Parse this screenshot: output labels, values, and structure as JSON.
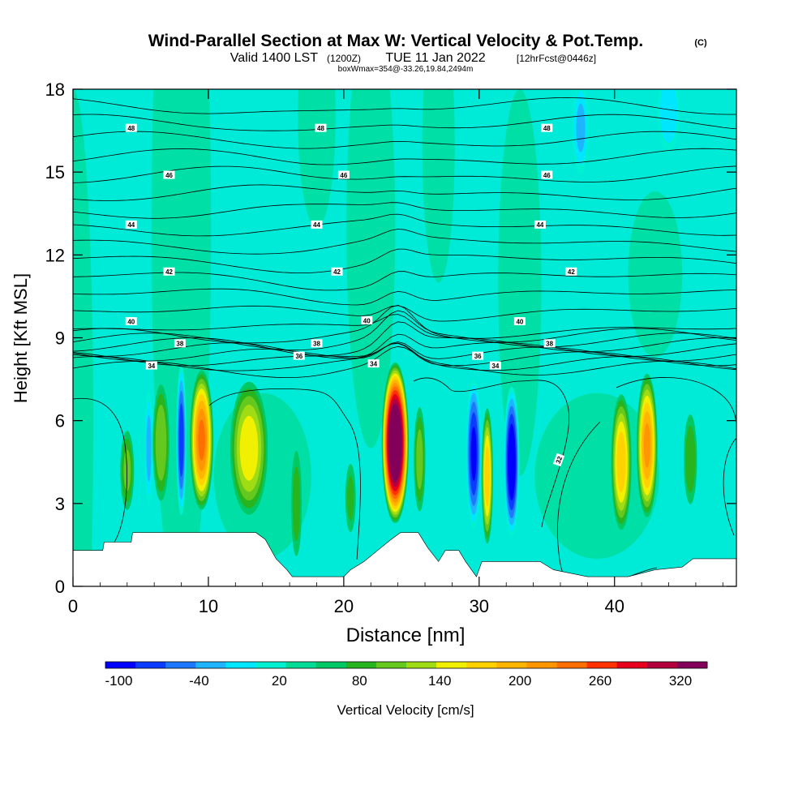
{
  "chart_data": {
    "type": "heatmap",
    "title": "Wind-Parallel Section at Max W: Vertical Velocity & Pot.Temp.",
    "title_mark": "(C)",
    "subtitle": {
      "valid_prefix": "Valid 1400 LST",
      "utc": "(1200Z)",
      "date": "TUE 11 Jan 2022",
      "forecast": "[12hrFcst@0446z]"
    },
    "box_info": "boxWmax=354@-33.26,19.84,2494m",
    "xlabel": "Distance [nm]",
    "ylabel": "Height [Kft MSL]",
    "xlim": [
      0,
      49
    ],
    "ylim": [
      0,
      18
    ],
    "x_ticks": [
      "0",
      "10",
      "20",
      "30",
      "40"
    ],
    "x_tick_values": [
      0,
      10,
      20,
      30,
      40
    ],
    "y_ticks": [
      "0",
      "3",
      "6",
      "9",
      "12",
      "15",
      "18"
    ],
    "y_tick_values": [
      0,
      3,
      6,
      9,
      12,
      15,
      18
    ],
    "colorbar": {
      "label": "Vertical Velocity [cm/s]",
      "range": [
        -110,
        340
      ],
      "step": 20,
      "tick_labels": [
        "-100",
        "-40",
        "20",
        "80",
        "140",
        "200",
        "260",
        "320"
      ],
      "tick_values": [
        -100,
        -40,
        20,
        80,
        140,
        200,
        260,
        320
      ],
      "colors": [
        "#0000ff",
        "#0a3cff",
        "#1e78ff",
        "#1eb4ff",
        "#00e6ff",
        "#00f0d2",
        "#00dc96",
        "#00c864",
        "#28b41e",
        "#64c81e",
        "#a0dc14",
        "#f0f000",
        "#ffd200",
        "#ffb400",
        "#ff9600",
        "#ff6e00",
        "#ff3200",
        "#e6001e",
        "#b4003c",
        "#82005a"
      ]
    },
    "terrain": {
      "distance_nm": [
        0,
        2.2,
        2.3,
        4.3,
        4.4,
        12,
        13.5,
        14.2,
        15,
        15.8,
        16.2,
        20,
        20.5,
        21.5,
        22.5,
        23.5,
        24.2,
        25.5,
        26.2,
        27,
        27.5,
        28.5,
        29,
        29.8,
        30.2,
        34.5,
        35.5,
        38,
        41,
        43,
        45,
        45.8,
        49
      ],
      "height_kft": [
        1.3,
        1.3,
        1.6,
        1.6,
        1.95,
        1.95,
        1.95,
        1.7,
        1.0,
        0.6,
        0.35,
        0.35,
        0.6,
        0.9,
        1.3,
        1.7,
        1.95,
        1.95,
        1.4,
        0.9,
        1.3,
        1.3,
        0.9,
        0.35,
        0.9,
        0.9,
        0.6,
        0.35,
        0.35,
        0.6,
        0.7,
        1.0,
        1.0
      ]
    },
    "updrafts": [
      {
        "x_nm": 4,
        "z_kft": 4.2,
        "half_width_nm": 0.6,
        "half_depth_kft": 1.7,
        "w_cms": 70
      },
      {
        "x_nm": 6.5,
        "z_kft": 5.2,
        "half_width_nm": 0.7,
        "half_depth_kft": 2.4,
        "w_cms": 85
      },
      {
        "x_nm": 9.5,
        "z_kft": 5.3,
        "half_width_nm": 0.9,
        "half_depth_kft": 2.6,
        "w_cms": 190
      },
      {
        "x_nm": 13,
        "z_kft": 5.0,
        "half_width_nm": 1.5,
        "half_depth_kft": 2.6,
        "w_cms": 120
      },
      {
        "x_nm": 16.5,
        "z_kft": 3.0,
        "half_width_nm": 0.5,
        "half_depth_kft": 2.4,
        "w_cms": 55
      },
      {
        "x_nm": 20.5,
        "z_kft": 3.2,
        "half_width_nm": 0.5,
        "half_depth_kft": 1.6,
        "w_cms": 50
      },
      {
        "x_nm": 23.8,
        "z_kft": 5.2,
        "half_width_nm": 1.0,
        "half_depth_kft": 2.9,
        "w_cms": 330
      },
      {
        "x_nm": 25.6,
        "z_kft": 4.6,
        "half_width_nm": 0.5,
        "half_depth_kft": 2.2,
        "w_cms": 75
      },
      {
        "x_nm": 30.6,
        "z_kft": 4.0,
        "half_width_nm": 0.45,
        "half_depth_kft": 2.6,
        "w_cms": 140
      },
      {
        "x_nm": 40.5,
        "z_kft": 4.5,
        "half_width_nm": 0.8,
        "half_depth_kft": 2.6,
        "w_cms": 140
      },
      {
        "x_nm": 42.4,
        "z_kft": 5.1,
        "half_width_nm": 0.8,
        "half_depth_kft": 2.7,
        "w_cms": 170
      },
      {
        "x_nm": 45.6,
        "z_kft": 4.6,
        "half_width_nm": 0.6,
        "half_depth_kft": 2.0,
        "w_cms": 60
      }
    ],
    "downdrafts": [
      {
        "x_nm": 5.6,
        "z_kft": 5.0,
        "half_width_nm": 0.3,
        "half_depth_kft": 2.0,
        "w_cms": -45
      },
      {
        "x_nm": 8.0,
        "z_kft": 5.3,
        "half_width_nm": 0.35,
        "half_depth_kft": 2.6,
        "w_cms": -90
      },
      {
        "x_nm": 29.6,
        "z_kft": 4.8,
        "half_width_nm": 0.55,
        "half_depth_kft": 2.6,
        "w_cms": -100
      },
      {
        "x_nm": 32.4,
        "z_kft": 4.5,
        "half_width_nm": 0.55,
        "half_depth_kft": 2.6,
        "w_cms": -120
      },
      {
        "x_nm": 37.5,
        "z_kft": 16.6,
        "half_width_nm": 0.6,
        "half_depth_kft": 1.6,
        "w_cms": -40
      },
      {
        "x_nm": 44,
        "z_kft": 17.2,
        "half_width_nm": 0.8,
        "half_depth_kft": 1.4,
        "w_cms": -35
      }
    ],
    "isentropes": [
      {
        "theta": 34,
        "label": "34",
        "label_positions_nm": [
          [
            5.8
          ],
          [
            22.2
          ],
          [
            31.2
          ]
        ],
        "base_kft": 8.0
      },
      {
        "theta": 36,
        "label": "36",
        "label_positions_nm": [
          [
            16.7
          ],
          [
            29.9
          ]
        ],
        "base_kft": 8.35
      },
      {
        "theta": 38,
        "label": "38",
        "label_positions_nm": [
          [
            7.9
          ],
          [
            18
          ]
        ],
        "base_kft": 8.8
      },
      {
        "theta": 38,
        "label": "38",
        "label_positions_nm": [
          [
            35.2
          ]
        ],
        "base_kft": 8.8
      },
      {
        "theta": 40,
        "label": "40",
        "label_positions_nm": [
          [
            4.3
          ],
          [
            21.7
          ],
          [
            33
          ]
        ],
        "base_kft": 9.6
      },
      {
        "theta": 42,
        "label": "42",
        "label_positions_nm": [
          [
            7.1
          ],
          [
            19.5
          ],
          [
            36.8
          ]
        ],
        "base_kft": 11.4
      },
      {
        "theta": 44,
        "label": "44",
        "label_positions_nm": [
          [
            4.3
          ],
          [
            18
          ],
          [
            34.5
          ]
        ],
        "base_kft": 13.1
      },
      {
        "theta": 46,
        "label": "46",
        "label_positions_nm": [
          [
            7.1
          ],
          [
            20
          ],
          [
            35
          ]
        ],
        "base_kft": 14.9
      },
      {
        "theta": 48,
        "label": "48",
        "label_positions_nm": [
          [
            4.3
          ],
          [
            18.3
          ],
          [
            35
          ]
        ],
        "base_kft": 16.6
      }
    ],
    "theta32_label": "32"
  }
}
